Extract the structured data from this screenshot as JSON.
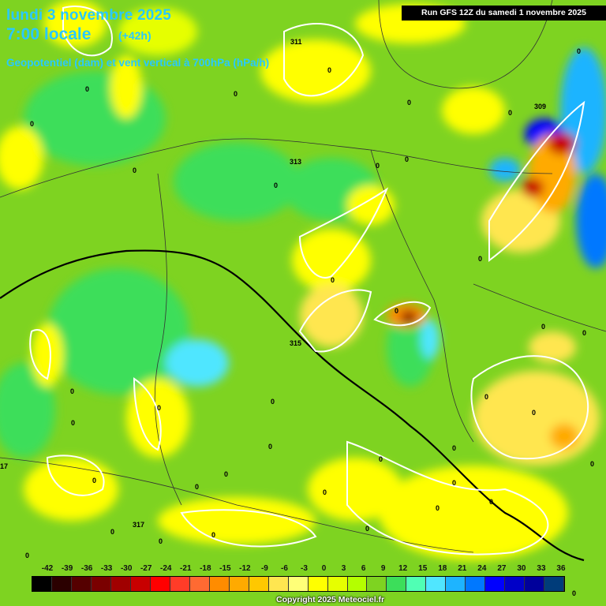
{
  "header": {
    "date_line": "lundi 3 novembre 2025",
    "time_line": "7:00 locale",
    "lead_time": "(+42h)",
    "parameter": "Geopotentiel (dam) et vent vertical à 700hPa (hPa/h)",
    "run_info": "Run GFS 12Z du samedi 1 novembre 2025"
  },
  "legend": {
    "labels": [
      "-42",
      "-39",
      "-36",
      "-33",
      "-30",
      "-27",
      "-24",
      "-21",
      "-18",
      "-15",
      "-12",
      "-9",
      "-6",
      "-3",
      "0",
      "3",
      "6",
      "9",
      "12",
      "15",
      "18",
      "21",
      "24",
      "27",
      "30",
      "33",
      "36"
    ],
    "colors": [
      "#000000",
      "#2b0000",
      "#550000",
      "#7a0000",
      "#a00000",
      "#c80000",
      "#ff0000",
      "#ff3c28",
      "#ff6a32",
      "#ff8c00",
      "#ffaa00",
      "#ffc800",
      "#ffe650",
      "#ffff78",
      "#ffff00",
      "#e6ff00",
      "#b4ff00",
      "#7ed321",
      "#3cde5a",
      "#50ffb4",
      "#50e6ff",
      "#1eb4ff",
      "#0078ff",
      "#0000ff",
      "#0000c8",
      "#00009b",
      "#003c7a"
    ],
    "copyright": "Copyright 2025 Meteociel.fr"
  },
  "map": {
    "contour_labels": [
      "311",
      "313",
      "315",
      "317",
      "309",
      "17"
    ],
    "zero_labels": [
      "0",
      "0",
      "0",
      "0",
      "0",
      "0",
      "0",
      "0",
      "0",
      "0",
      "0",
      "0",
      "0",
      "0",
      "0",
      "0",
      "0",
      "0",
      "0",
      "0",
      "0",
      "0",
      "0",
      "0",
      "0",
      "0",
      "0",
      "0",
      "0",
      "0",
      "0",
      "0",
      "0",
      "0",
      "0",
      "0",
      "0",
      "0",
      "0"
    ]
  }
}
